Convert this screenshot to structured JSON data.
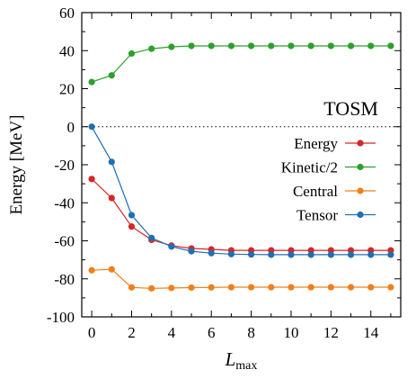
{
  "chart_data": {
    "type": "line",
    "title": "",
    "annotation": "TOSM",
    "ylabel": "Energy [MeV]",
    "xlabel": {
      "main": "L",
      "subscript": "max"
    },
    "x": [
      0,
      1,
      2,
      3,
      4,
      5,
      6,
      7,
      8,
      9,
      10,
      11,
      12,
      13,
      14,
      15
    ],
    "xlim": [
      -0.5,
      15.5
    ],
    "ylim": [
      -100,
      60
    ],
    "xticks": [
      0,
      2,
      4,
      6,
      8,
      10,
      12,
      14
    ],
    "xtick_labels": [
      "0",
      "2",
      "4",
      "6",
      "8",
      "10",
      "12",
      "14"
    ],
    "yticks": [
      -100,
      -80,
      -60,
      -40,
      -20,
      0,
      20,
      40,
      60
    ],
    "ytick_labels": [
      "-100",
      "-80",
      "-60",
      "-40",
      "-20",
      "0",
      "20",
      "40",
      "60"
    ],
    "grid": false,
    "reference_line": {
      "y": 0,
      "style": "dotted",
      "color": "#000000"
    },
    "legend_position": "right",
    "series": [
      {
        "name": "Energy",
        "color": "#d62728",
        "values": [
          -27.5,
          -37.5,
          -52.5,
          -59.5,
          -62.5,
          -64.0,
          -64.5,
          -65.0,
          -65.0,
          -65.0,
          -65.0,
          -65.0,
          -65.0,
          -65.0,
          -65.0,
          -65.0
        ]
      },
      {
        "name": "Kinetic/2",
        "color": "#2ca02c",
        "values": [
          23.5,
          27.0,
          38.5,
          41.0,
          42.0,
          42.5,
          42.5,
          42.5,
          42.5,
          42.5,
          42.5,
          42.5,
          42.5,
          42.5,
          42.5,
          42.5
        ]
      },
      {
        "name": "Central",
        "color": "#f07f1a",
        "values": [
          -75.5,
          -75.0,
          -84.5,
          -85.0,
          -84.8,
          -84.6,
          -84.5,
          -84.4,
          -84.4,
          -84.4,
          -84.4,
          -84.4,
          -84.4,
          -84.4,
          -84.4,
          -84.4
        ]
      },
      {
        "name": "Tensor",
        "color": "#1f6fb5",
        "values": [
          0.0,
          -18.5,
          -46.5,
          -58.5,
          -63.0,
          -65.5,
          -66.5,
          -67.0,
          -67.2,
          -67.3,
          -67.3,
          -67.3,
          -67.3,
          -67.3,
          -67.3,
          -67.3
        ]
      }
    ]
  }
}
